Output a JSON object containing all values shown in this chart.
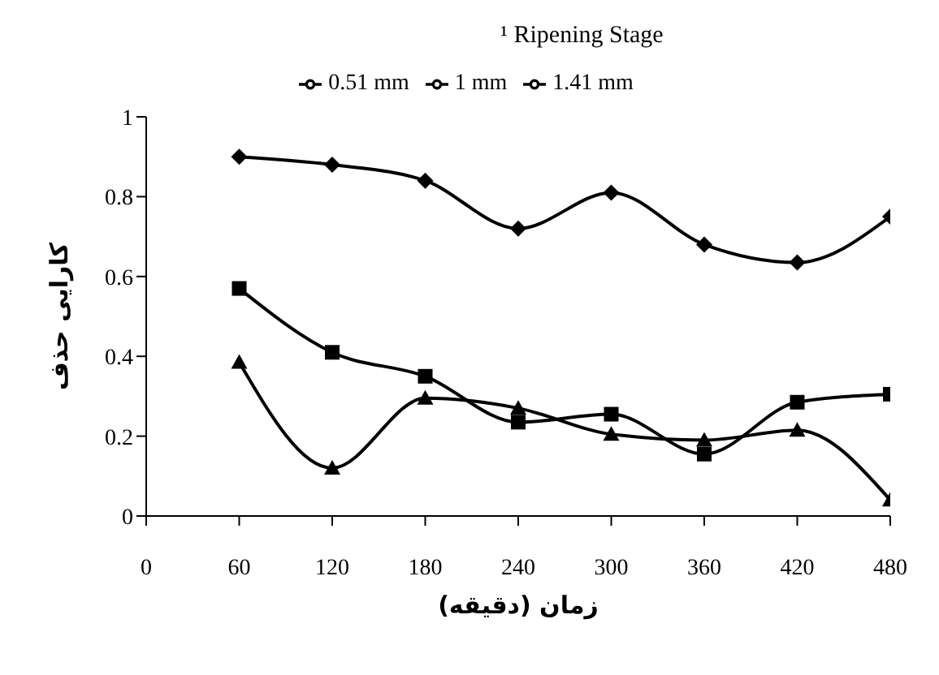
{
  "chart_data": {
    "type": "line",
    "title": "¹ Ripening Stage",
    "xlabel": "زمان (دقیقه)",
    "ylabel": "کارایی حذف",
    "x": [
      60,
      120,
      180,
      240,
      300,
      360,
      420,
      480
    ],
    "series": [
      {
        "name": "0.51 mm",
        "color": "#000000",
        "marker": "diamond",
        "values": [
          0.9,
          0.88,
          0.84,
          0.72,
          0.81,
          0.68,
          0.635,
          0.75
        ]
      },
      {
        "name": "1 mm",
        "color": "#000000",
        "marker": "square",
        "values": [
          0.57,
          0.41,
          0.35,
          0.235,
          0.255,
          0.155,
          0.285,
          0.305
        ]
      },
      {
        "name": "1.41 mm",
        "color": "#000000",
        "marker": "triangle",
        "values": [
          0.385,
          0.12,
          0.295,
          0.27,
          0.205,
          0.19,
          0.215,
          0.04
        ]
      }
    ],
    "xlim": [
      0,
      480
    ],
    "xticks": [
      0,
      60,
      120,
      180,
      240,
      300,
      360,
      420,
      480
    ],
    "ylim": [
      0,
      1
    ],
    "yticks": [
      0,
      0.2,
      0.4,
      0.6,
      0.8,
      1
    ],
    "grid": false,
    "legend": "top",
    "line_style": "solid"
  }
}
